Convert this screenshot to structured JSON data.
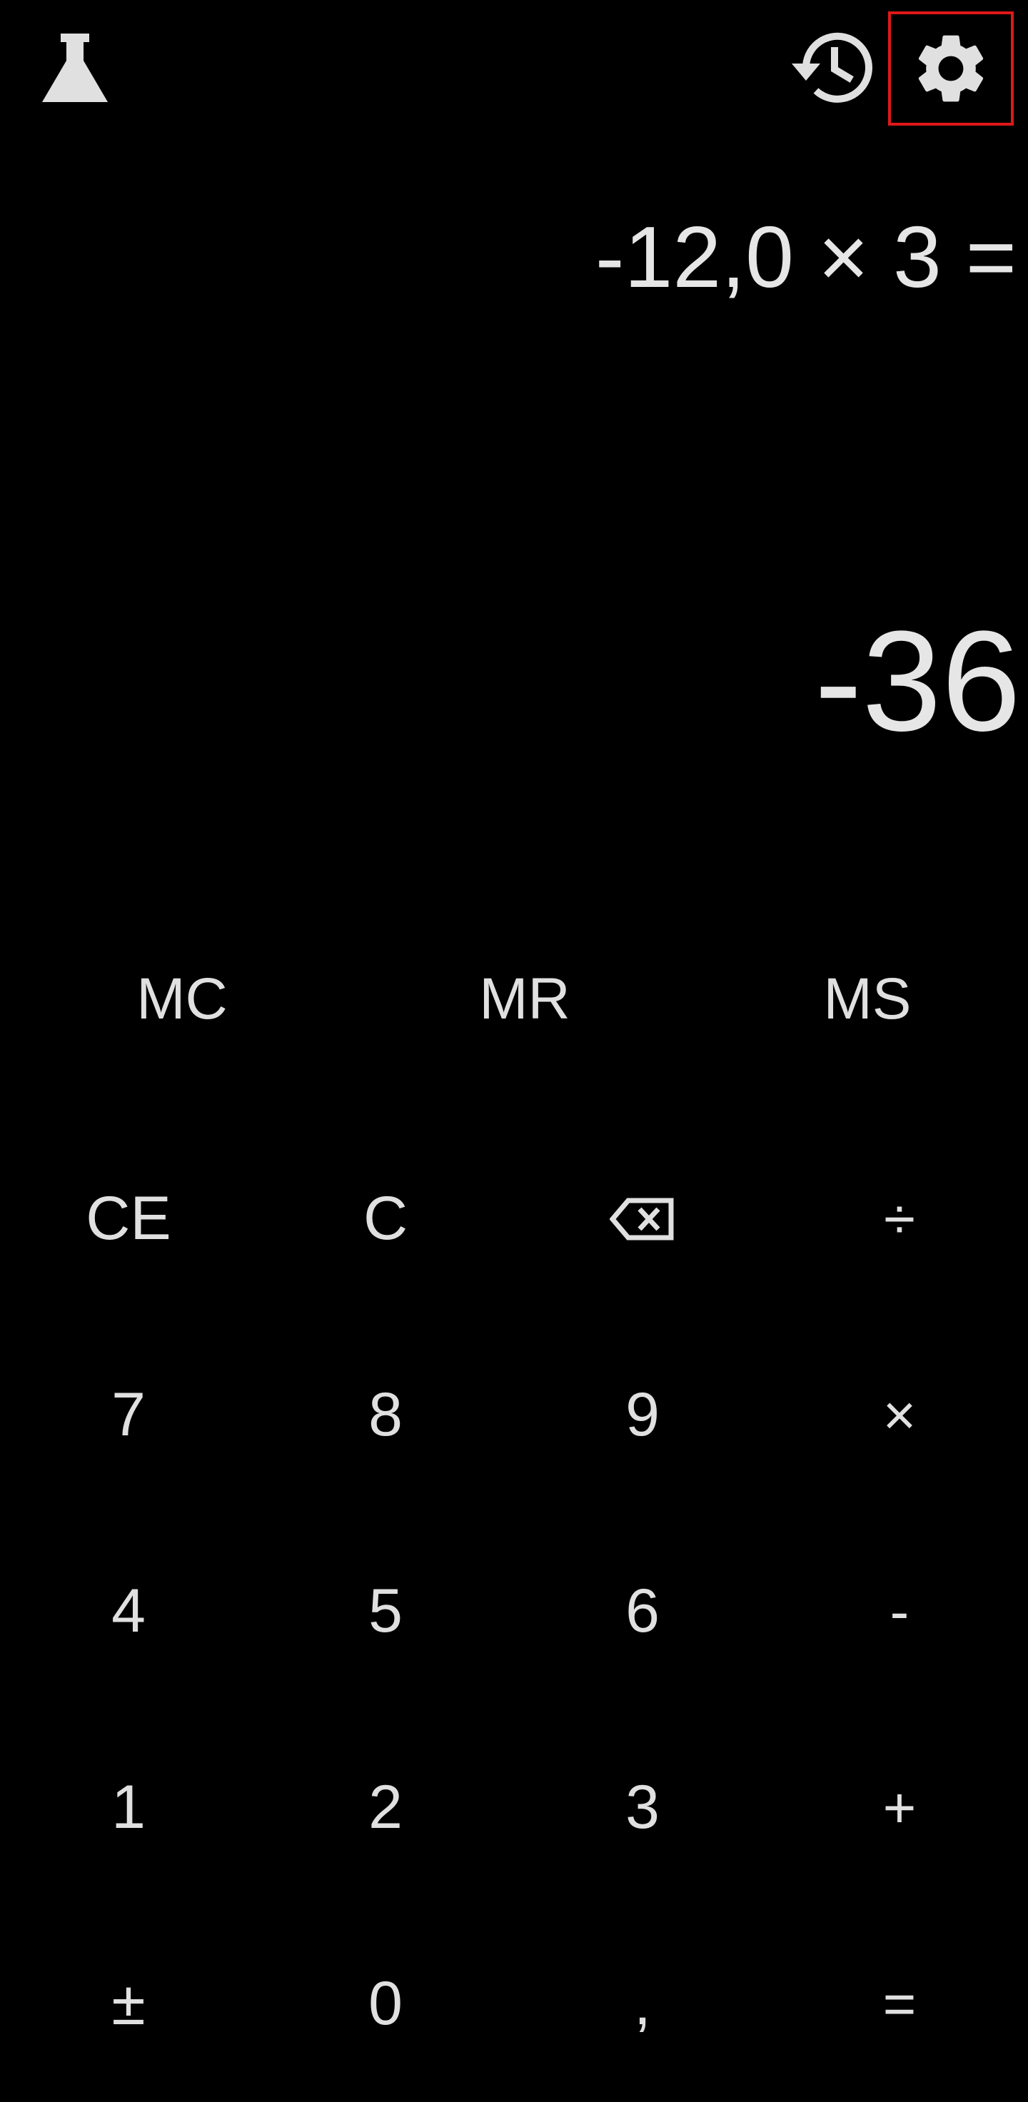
{
  "toolbar": {
    "lab_icon": "flask-icon",
    "history_icon": "history-icon",
    "settings_icon": "gear-icon",
    "selected_highlight_color": "#e01818"
  },
  "display": {
    "expression": "-12,0 × 3 =",
    "result": "-36"
  },
  "memory": {
    "mc": "MC",
    "mr": "MR",
    "ms": "MS"
  },
  "keypad": {
    "ce": "CE",
    "c": "C",
    "backspace_icon": "backspace-icon",
    "divide": "÷",
    "seven": "7",
    "eight": "8",
    "nine": "9",
    "multiply": "×",
    "four": "4",
    "five": "5",
    "six": "6",
    "minus": "-",
    "one": "1",
    "two": "2",
    "three": "3",
    "plus": "+",
    "plus_minus": "±",
    "zero": "0",
    "decimal": ",",
    "equals": "="
  },
  "colors": {
    "background": "#000000",
    "foreground": "#e6e6e6"
  }
}
